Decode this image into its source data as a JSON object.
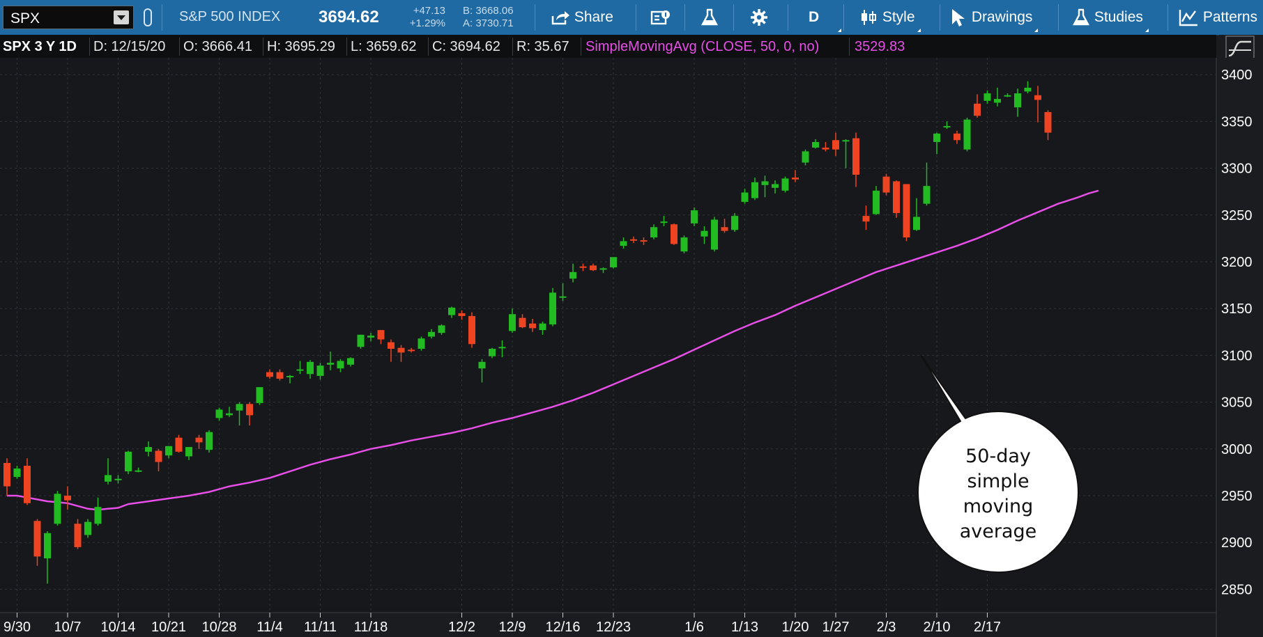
{
  "toolbar": {
    "symbol": "SPX",
    "name": "S&P 500 INDEX",
    "last": "3694.62",
    "change": "+47.13",
    "change_pct": "+1.29%",
    "bid": "B: 3668.06",
    "ask": "A: 3730.71",
    "share": "Share",
    "period": "D",
    "style": "Style",
    "drawings": "Drawings",
    "studies": "Studies",
    "patterns": "Patterns"
  },
  "infobar": {
    "symbol_label": "SPX 3 Y 1D",
    "date": "D: 12/15/20",
    "open": "O: 3666.41",
    "high": "H: 3695.29",
    "low": "L: 3659.62",
    "close": "C: 3694.62",
    "range": "R: 35.67",
    "study": "SimpleMovingAvg (CLOSE, 50, 0, no)",
    "study_value": "3529.83"
  },
  "colors": {
    "background": "#16181c",
    "toolbar": "#1f6aa3",
    "up": "#22bb22",
    "down": "#ee4422",
    "sma": "#e84ee8"
  },
  "callout": {
    "lines": [
      "50-day",
      "simple",
      "moving",
      "average"
    ]
  },
  "chart_data": {
    "type": "candlestick",
    "ylim": [
      2825,
      3418
    ],
    "yticks": [
      2850,
      2900,
      2950,
      3000,
      3050,
      3100,
      3150,
      3200,
      3250,
      3300,
      3350,
      3400
    ],
    "xticks": [
      {
        "i": 1,
        "label": "9/30"
      },
      {
        "i": 6,
        "label": "10/7"
      },
      {
        "i": 11,
        "label": "10/14"
      },
      {
        "i": 16,
        "label": "10/21"
      },
      {
        "i": 21,
        "label": "10/28"
      },
      {
        "i": 26,
        "label": "11/4"
      },
      {
        "i": 31,
        "label": "11/11"
      },
      {
        "i": 36,
        "label": "11/18"
      },
      {
        "i": 45,
        "label": "12/2"
      },
      {
        "i": 50,
        "label": "12/9"
      },
      {
        "i": 55,
        "label": "12/16"
      },
      {
        "i": 60,
        "label": "12/23"
      },
      {
        "i": 68,
        "label": "1/6"
      },
      {
        "i": 73,
        "label": "1/13"
      },
      {
        "i": 78,
        "label": "1/20"
      },
      {
        "i": 82,
        "label": "1/27"
      },
      {
        "i": 87,
        "label": "2/3"
      },
      {
        "i": 92,
        "label": "2/10"
      },
      {
        "i": 97,
        "label": "2/17"
      }
    ],
    "candles": [
      {
        "o": 2985,
        "h": 2990,
        "l": 2950,
        "c": 2960
      },
      {
        "o": 2970,
        "h": 2982,
        "l": 2968,
        "c": 2979
      },
      {
        "o": 2982,
        "h": 2990,
        "l": 2940,
        "c": 2942
      },
      {
        "o": 2923,
        "h": 2925,
        "l": 2875,
        "c": 2885
      },
      {
        "o": 2883,
        "h": 2912,
        "l": 2856,
        "c": 2910
      },
      {
        "o": 2920,
        "h": 2955,
        "l": 2918,
        "c": 2952
      },
      {
        "o": 2950,
        "h": 2960,
        "l": 2935,
        "c": 2945
      },
      {
        "o": 2920,
        "h": 2925,
        "l": 2893,
        "c": 2895
      },
      {
        "o": 2908,
        "h": 2925,
        "l": 2905,
        "c": 2922
      },
      {
        "o": 2920,
        "h": 2948,
        "l": 2918,
        "c": 2938
      },
      {
        "o": 2965,
        "h": 2990,
        "l": 2962,
        "c": 2972
      },
      {
        "o": 2968,
        "h": 2972,
        "l": 2963,
        "c": 2968
      },
      {
        "o": 2976,
        "h": 2998,
        "l": 2973,
        "c": 2997
      },
      {
        "o": 2976,
        "h": 2980,
        "l": 2975,
        "c": 2977
      },
      {
        "o": 2997,
        "h": 3008,
        "l": 2992,
        "c": 3002
      },
      {
        "o": 2998,
        "h": 3000,
        "l": 2976,
        "c": 2986
      },
      {
        "o": 2993,
        "h": 3003,
        "l": 2990,
        "c": 3003
      },
      {
        "o": 3012,
        "h": 3015,
        "l": 2996,
        "c": 2997
      },
      {
        "o": 2992,
        "h": 3002,
        "l": 2988,
        "c": 3002
      },
      {
        "o": 3012,
        "h": 3015,
        "l": 3000,
        "c": 3007
      },
      {
        "o": 2999,
        "h": 3020,
        "l": 2996,
        "c": 3018
      },
      {
        "o": 3033,
        "h": 3044,
        "l": 3030,
        "c": 3042
      },
      {
        "o": 3036,
        "h": 3045,
        "l": 3034,
        "c": 3038
      },
      {
        "o": 3041,
        "h": 3050,
        "l": 3025,
        "c": 3048
      },
      {
        "o": 3048,
        "h": 3050,
        "l": 3025,
        "c": 3036
      },
      {
        "o": 3049,
        "h": 3066,
        "l": 3047,
        "c": 3066
      },
      {
        "o": 3082,
        "h": 3085,
        "l": 3075,
        "c": 3077
      },
      {
        "o": 3082,
        "h": 3085,
        "l": 3073,
        "c": 3075
      },
      {
        "o": 3077,
        "h": 3079,
        "l": 3070,
        "c": 3078
      },
      {
        "o": 3085,
        "h": 3094,
        "l": 3080,
        "c": 3085
      },
      {
        "o": 3080,
        "h": 3095,
        "l": 3075,
        "c": 3093
      },
      {
        "o": 3078,
        "h": 3092,
        "l": 3074,
        "c": 3089
      },
      {
        "o": 3090,
        "h": 3104,
        "l": 3084,
        "c": 3092
      },
      {
        "o": 3086,
        "h": 3096,
        "l": 3082,
        "c": 3094
      },
      {
        "o": 3090,
        "h": 3098,
        "l": 3088,
        "c": 3097
      },
      {
        "o": 3109,
        "h": 3122,
        "l": 3107,
        "c": 3122
      },
      {
        "o": 3119,
        "h": 3124,
        "l": 3115,
        "c": 3121
      },
      {
        "o": 3127,
        "h": 3127,
        "l": 3112,
        "c": 3117
      },
      {
        "o": 3114,
        "h": 3117,
        "l": 3093,
        "c": 3107
      },
      {
        "o": 3108,
        "h": 3111,
        "l": 3093,
        "c": 3103
      },
      {
        "o": 3106,
        "h": 3108,
        "l": 3103,
        "c": 3105
      },
      {
        "o": 3107,
        "h": 3120,
        "l": 3105,
        "c": 3118
      },
      {
        "o": 3120,
        "h": 3128,
        "l": 3118,
        "c": 3125
      },
      {
        "o": 3124,
        "h": 3133,
        "l": 3122,
        "c": 3132
      },
      {
        "o": 3143,
        "h": 3152,
        "l": 3140,
        "c": 3151
      },
      {
        "o": 3145,
        "h": 3148,
        "l": 3138,
        "c": 3142
      },
      {
        "o": 3142,
        "h": 3146,
        "l": 3108,
        "c": 3112
      },
      {
        "o": 3086,
        "h": 3096,
        "l": 3071,
        "c": 3093
      },
      {
        "o": 3099,
        "h": 3108,
        "l": 3097,
        "c": 3107
      },
      {
        "o": 3109,
        "h": 3116,
        "l": 3098,
        "c": 3109
      },
      {
        "o": 3126,
        "h": 3150,
        "l": 3124,
        "c": 3144
      },
      {
        "o": 3140,
        "h": 3144,
        "l": 3129,
        "c": 3130
      },
      {
        "o": 3134,
        "h": 3139,
        "l": 3125,
        "c": 3129
      },
      {
        "o": 3127,
        "h": 3136,
        "l": 3122,
        "c": 3134
      },
      {
        "o": 3133,
        "h": 3172,
        "l": 3131,
        "c": 3167
      },
      {
        "o": 3162,
        "h": 3177,
        "l": 3158,
        "c": 3163
      },
      {
        "o": 3182,
        "h": 3198,
        "l": 3178,
        "c": 3189
      },
      {
        "o": 3195,
        "h": 3198,
        "l": 3190,
        "c": 3194
      },
      {
        "o": 3196,
        "h": 3198,
        "l": 3190,
        "c": 3191
      },
      {
        "o": 3193,
        "h": 3194,
        "l": 3188,
        "c": 3193
      },
      {
        "o": 3194,
        "h": 3205,
        "l": 3193,
        "c": 3205
      },
      {
        "o": 3217,
        "h": 3226,
        "l": 3214,
        "c": 3222
      },
      {
        "o": 3224,
        "h": 3227,
        "l": 3220,
        "c": 3223
      },
      {
        "o": 3223,
        "h": 3226,
        "l": 3218,
        "c": 3222
      },
      {
        "o": 3226,
        "h": 3240,
        "l": 3224,
        "c": 3237
      },
      {
        "o": 3242,
        "h": 3249,
        "l": 3238,
        "c": 3243
      },
      {
        "o": 3240,
        "h": 3241,
        "l": 3218,
        "c": 3219
      },
      {
        "o": 3211,
        "h": 3228,
        "l": 3209,
        "c": 3226
      },
      {
        "o": 3241,
        "h": 3258,
        "l": 3238,
        "c": 3255
      },
      {
        "o": 3227,
        "h": 3238,
        "l": 3219,
        "c": 3233
      },
      {
        "o": 3213,
        "h": 3248,
        "l": 3211,
        "c": 3245
      },
      {
        "o": 3237,
        "h": 3246,
        "l": 3231,
        "c": 3233
      },
      {
        "o": 3234,
        "h": 3252,
        "l": 3232,
        "c": 3249
      },
      {
        "o": 3264,
        "h": 3278,
        "l": 3262,
        "c": 3274
      },
      {
        "o": 3268,
        "h": 3290,
        "l": 3266,
        "c": 3285
      },
      {
        "o": 3282,
        "h": 3292,
        "l": 3269,
        "c": 3286
      },
      {
        "o": 3279,
        "h": 3287,
        "l": 3273,
        "c": 3283
      },
      {
        "o": 3276,
        "h": 3291,
        "l": 3274,
        "c": 3289
      },
      {
        "o": 3290,
        "h": 3298,
        "l": 3285,
        "c": 3288
      },
      {
        "o": 3306,
        "h": 3320,
        "l": 3303,
        "c": 3318
      },
      {
        "o": 3322,
        "h": 3331,
        "l": 3321,
        "c": 3328
      },
      {
        "o": 3322,
        "h": 3328,
        "l": 3318,
        "c": 3320
      },
      {
        "o": 3330,
        "h": 3338,
        "l": 3313,
        "c": 3320
      },
      {
        "o": 3330,
        "h": 3331,
        "l": 3300,
        "c": 3330
      },
      {
        "o": 3332,
        "h": 3338,
        "l": 3280,
        "c": 3293
      },
      {
        "o": 3249,
        "h": 3260,
        "l": 3234,
        "c": 3243
      },
      {
        "o": 3251,
        "h": 3281,
        "l": 3250,
        "c": 3276
      },
      {
        "o": 3291,
        "h": 3294,
        "l": 3271,
        "c": 3274
      },
      {
        "o": 3286,
        "h": 3287,
        "l": 3247,
        "c": 3252
      },
      {
        "o": 3283,
        "h": 3283,
        "l": 3222,
        "c": 3226
      },
      {
        "o": 3234,
        "h": 3268,
        "l": 3233,
        "c": 3248
      },
      {
        "o": 3262,
        "h": 3306,
        "l": 3260,
        "c": 3281
      },
      {
        "o": 3328,
        "h": 3338,
        "l": 3315,
        "c": 3337
      },
      {
        "o": 3345,
        "h": 3350,
        "l": 3342,
        "c": 3345
      },
      {
        "o": 3337,
        "h": 3340,
        "l": 3326,
        "c": 3330
      },
      {
        "o": 3320,
        "h": 3354,
        "l": 3318,
        "c": 3352
      },
      {
        "o": 3369,
        "h": 3379,
        "l": 3354,
        "c": 3356
      },
      {
        "o": 3372,
        "h": 3383,
        "l": 3369,
        "c": 3380
      },
      {
        "o": 3370,
        "h": 3386,
        "l": 3366,
        "c": 3374
      },
      {
        "o": 3378,
        "h": 3380,
        "l": 3376,
        "c": 3378
      },
      {
        "o": 3365,
        "h": 3385,
        "l": 3355,
        "c": 3380
      },
      {
        "o": 3382,
        "h": 3393,
        "l": 3380,
        "c": 3386
      },
      {
        "o": 3378,
        "h": 3388,
        "l": 3349,
        "c": 3373
      },
      {
        "o": 3360,
        "h": 3362,
        "l": 3330,
        "c": 3338
      }
    ],
    "sma": [
      [
        0,
        2950
      ],
      [
        1,
        2950
      ],
      [
        2,
        2948
      ],
      [
        3,
        2946
      ],
      [
        4,
        2944
      ],
      [
        5,
        2943
      ],
      [
        6,
        2942
      ],
      [
        7,
        2939
      ],
      [
        8,
        2936
      ],
      [
        9,
        2935
      ],
      [
        10,
        2936
      ],
      [
        11,
        2937
      ],
      [
        12,
        2941
      ],
      [
        14,
        2944
      ],
      [
        16,
        2947
      ],
      [
        18,
        2950
      ],
      [
        20,
        2954
      ],
      [
        22,
        2960
      ],
      [
        24,
        2964
      ],
      [
        26,
        2969
      ],
      [
        28,
        2976
      ],
      [
        30,
        2983
      ],
      [
        32,
        2989
      ],
      [
        34,
        2994
      ],
      [
        36,
        3000
      ],
      [
        38,
        3004
      ],
      [
        40,
        3009
      ],
      [
        42,
        3013
      ],
      [
        44,
        3017
      ],
      [
        46,
        3022
      ],
      [
        48,
        3028
      ],
      [
        50,
        3033
      ],
      [
        52,
        3039
      ],
      [
        54,
        3045
      ],
      [
        56,
        3052
      ],
      [
        58,
        3060
      ],
      [
        60,
        3069
      ],
      [
        62,
        3078
      ],
      [
        64,
        3087
      ],
      [
        66,
        3096
      ],
      [
        68,
        3106
      ],
      [
        70,
        3116
      ],
      [
        72,
        3126
      ],
      [
        74,
        3135
      ],
      [
        76,
        3143
      ],
      [
        78,
        3153
      ],
      [
        80,
        3162
      ],
      [
        82,
        3171
      ],
      [
        84,
        3180
      ],
      [
        86,
        3189
      ],
      [
        88,
        3196
      ],
      [
        90,
        3203
      ],
      [
        92,
        3210
      ],
      [
        94,
        3217
      ],
      [
        96,
        3225
      ],
      [
        98,
        3234
      ],
      [
        100,
        3244
      ],
      [
        102,
        3253
      ],
      [
        104,
        3262
      ],
      [
        106,
        3269
      ],
      [
        107,
        3273
      ],
      [
        108,
        3276
      ]
    ]
  }
}
